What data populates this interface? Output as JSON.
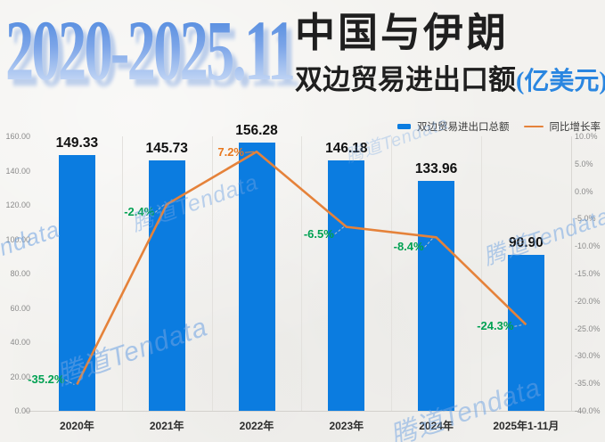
{
  "title": {
    "range": "2020-2025.11",
    "line1": "中国与伊朗",
    "line2": "双边贸易进出口额",
    "unit": "(亿美元)",
    "range_color": "#4b86dd",
    "unit_color": "#2a86e0"
  },
  "legend": [
    {
      "label": "双边贸易进出口总额",
      "color": "#0b7ce0",
      "type": "bar"
    },
    {
      "label": "同比增长率",
      "color": "#e5823a",
      "type": "line"
    }
  ],
  "watermark": {
    "text": "腾道Tendata"
  },
  "chart_data": {
    "type": "bar+line",
    "title": "2020-2025.11 中国与伊朗双边贸易进出口额(亿美元)",
    "categories": [
      "2020年",
      "2021年",
      "2022年",
      "2023年",
      "2024年",
      "2025年1-11月"
    ],
    "series": [
      {
        "name": "双边贸易进出口总额",
        "type": "bar",
        "axis": "left",
        "unit": "亿美元",
        "color": "#0b7ce0",
        "values": [
          149.33,
          145.73,
          156.28,
          146.18,
          133.96,
          90.9
        ],
        "value_labels": [
          "149.33",
          "145.73",
          "156.28",
          "146.18",
          "133.96",
          "90.90"
        ]
      },
      {
        "name": "同比增长率",
        "type": "line",
        "axis": "right",
        "unit": "%",
        "color": "#e5823a",
        "values": [
          -35.2,
          -2.4,
          7.2,
          -6.5,
          -8.4,
          -24.3
        ],
        "value_labels": [
          "-35.2%",
          "-2.4%",
          "7.2%",
          "-6.5%",
          "-8.4%",
          "-24.3%"
        ],
        "positive_label_color": "#e8781e",
        "negative_label_color": "#00a152"
      }
    ],
    "left_axis": {
      "min": 0,
      "max": 160,
      "ticks": [
        "160.00",
        "140.00",
        "120.00",
        "100.00",
        "80.00",
        "60.00",
        "40.00",
        "20.00",
        "0.00"
      ]
    },
    "right_axis": {
      "min": -40,
      "max": 10,
      "ticks": [
        "10.0%",
        "5.0%",
        "0.0%",
        "-5.0%",
        "-10.0%",
        "-15.0%",
        "-20.0%",
        "-25.0%",
        "-30.0%",
        "-35.0%",
        "-40.0%"
      ]
    },
    "grid": {
      "vertical_gridlines": true,
      "horizontal_gridlines": false
    },
    "legend_position": "top-right"
  }
}
